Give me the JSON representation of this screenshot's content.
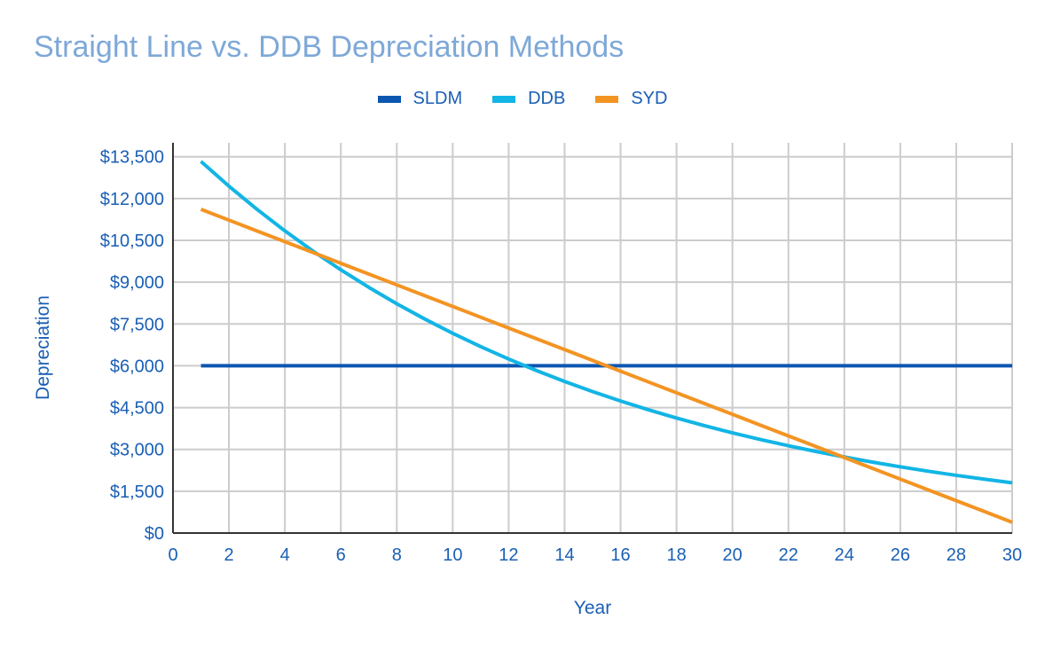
{
  "chart_data": {
    "type": "line",
    "title": "Straight Line vs. DDB Depreciation Methods",
    "xlabel": "Year",
    "ylabel": "Depreciation",
    "xlim": [
      0,
      30
    ],
    "ylim": [
      0,
      14000
    ],
    "x_ticks": [
      0,
      2,
      4,
      6,
      8,
      10,
      12,
      14,
      16,
      18,
      20,
      22,
      24,
      26,
      28,
      30
    ],
    "y_ticks": [
      0,
      1500,
      3000,
      4500,
      6000,
      7500,
      9000,
      10500,
      12000,
      13500
    ],
    "y_tick_labels": [
      "$0",
      "$1,500",
      "$3,000",
      "$4,500",
      "$6,000",
      "$7,500",
      "$9,000",
      "$10,500",
      "$12,000",
      "$13,500"
    ],
    "grid": true,
    "legend_position": "top",
    "x": [
      1,
      2,
      3,
      4,
      5,
      6,
      7,
      8,
      9,
      10,
      11,
      12,
      13,
      14,
      15,
      16,
      17,
      18,
      19,
      20,
      21,
      22,
      23,
      24,
      25,
      26,
      27,
      28,
      29,
      30
    ],
    "series": [
      {
        "name": "SLDM",
        "color": "#0b57b0",
        "values": [
          6000,
          6000,
          6000,
          6000,
          6000,
          6000,
          6000,
          6000,
          6000,
          6000,
          6000,
          6000,
          6000,
          6000,
          6000,
          6000,
          6000,
          6000,
          6000,
          6000,
          6000,
          6000,
          6000,
          6000,
          6000,
          6000,
          6000,
          6000,
          6000,
          6000
        ]
      },
      {
        "name": "DDB",
        "color": "#12b5e5",
        "values": [
          13333,
          12444,
          11615,
          10841,
          10118,
          9443,
          8814,
          8226,
          7678,
          7166,
          6688,
          6242,
          5826,
          5438,
          5075,
          4737,
          4421,
          4126,
          3851,
          3595,
          3355,
          3131,
          2923,
          2728,
          2546,
          2376,
          2218,
          2070,
          1932,
          1803
        ]
      },
      {
        "name": "SYD",
        "color": "#f39423",
        "values": [
          11613,
          11226,
          10839,
          10452,
          10065,
          9677,
          9290,
          8903,
          8516,
          8129,
          7742,
          7355,
          6968,
          6581,
          6194,
          5806,
          5419,
          5032,
          4645,
          4258,
          3871,
          3484,
          3097,
          2710,
          2323,
          1935,
          1548,
          1161,
          774,
          387
        ]
      }
    ]
  }
}
